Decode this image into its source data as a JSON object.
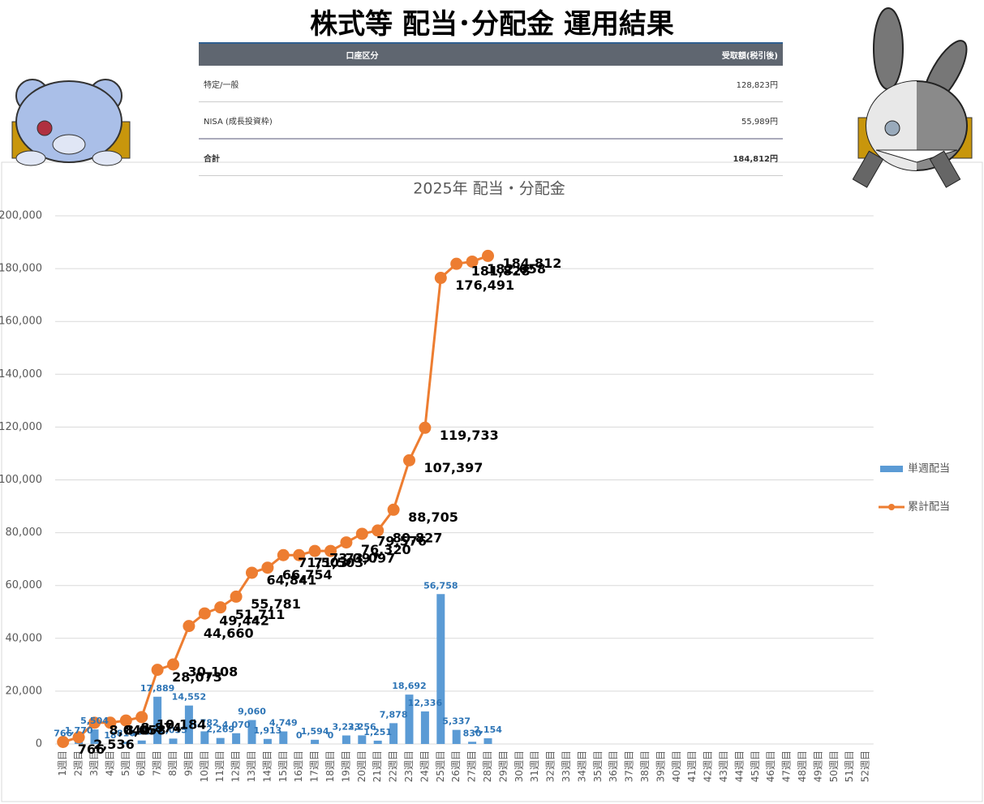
{
  "header": {
    "title": "株式等 配当･分配金 運用結果"
  },
  "table": {
    "columns": [
      "口座区分",
      "受取額(税引後)"
    ],
    "rows": [
      [
        "特定/一般",
        "128,823円"
      ],
      [
        "NISA (成長投資枠)",
        "55,989円"
      ],
      [
        "合計",
        "184,812円"
      ]
    ]
  },
  "chart_data": {
    "type": "bar_line",
    "title": "2025年 配当・分配金",
    "categories": [
      "1週目",
      "2週目",
      "3週目",
      "4週目",
      "5週目",
      "6週目",
      "7週目",
      "8週目",
      "9週目",
      "10週目",
      "11週目",
      "12週目",
      "13週目",
      "14週目",
      "15週目",
      "16週目",
      "17週目",
      "18週目",
      "19週目",
      "20週目",
      "21週目",
      "22週目",
      "23週目",
      "24週目",
      "25週目",
      "26週目",
      "27週目",
      "28週目",
      "29週目",
      "30週目",
      "31週目",
      "32週目",
      "33週目",
      "34週目",
      "35週目",
      "36週目",
      "37週目",
      "38週目",
      "39週目",
      "40週目",
      "41週目",
      "42週目",
      "43週目",
      "44週目",
      "45週目",
      "46週目",
      "47週目",
      "48週目",
      "49週目",
      "50週目",
      "51週目",
      "52週目"
    ],
    "series": [
      {
        "name": "単週配当",
        "type": "bar",
        "color": "#5b9bd5",
        "values": [
          766,
          1770,
          5504,
          18,
          816,
          1310,
          17889,
          2035,
          14552,
          4782,
          2269,
          4070,
          9060,
          1913,
          4749,
          0,
          1594,
          0,
          3223,
          3256,
          1251,
          7878,
          18692,
          12336,
          56758,
          5337,
          830,
          2154,
          null,
          null,
          null,
          null,
          null,
          null,
          null,
          null,
          null,
          null,
          null,
          null,
          null,
          null,
          null,
          null,
          null,
          null,
          null,
          null,
          null,
          null,
          null,
          null
        ],
        "value_labels": [
          "766",
          "1,770",
          "5,504",
          "18",
          "816",
          "1,310",
          "17,889",
          "2,035",
          "14,552",
          "4,782",
          "2,269",
          "4,070",
          "9,060",
          "1,913",
          "4,749",
          "0",
          "1,594",
          "0",
          "3,223",
          "3,256",
          "1,251",
          "7,878",
          "18,692",
          "12,336",
          "56,758",
          "5,337",
          "830",
          "2,154",
          null,
          null,
          null,
          null,
          null,
          null,
          null,
          null,
          null,
          null,
          null,
          null,
          null,
          null,
          null,
          null,
          null,
          null,
          null,
          null,
          null,
          null,
          null,
          null
        ]
      },
      {
        "name": "累計配当",
        "type": "line",
        "color": "#ed7d31",
        "values": [
          766,
          2536,
          8040,
          8058,
          8874,
          10184,
          28073,
          30108,
          44660,
          49442,
          51711,
          55781,
          64841,
          66754,
          71503,
          71503,
          73097,
          73097,
          76320,
          79576,
          80827,
          88705,
          107397,
          119733,
          176491,
          181828,
          182658,
          184812,
          null,
          null,
          null,
          null,
          null,
          null,
          null,
          null,
          null,
          null,
          null,
          null,
          null,
          null,
          null,
          null,
          null,
          null,
          null,
          null,
          null,
          null,
          null,
          null
        ],
        "value_labels": [
          "766",
          "2,536",
          "8,040",
          "8,058",
          "8,874",
          "10,184",
          "28,073",
          "30,108",
          "44,660",
          "49,442",
          "51,711",
          "55,781",
          "64,841",
          "66,754",
          "71,503",
          "71,503",
          "73,097",
          "73,097",
          "76,320",
          "79,576",
          "80,827",
          "88,705",
          "107,397",
          "119,733",
          "176,491",
          "181,828",
          "182,658",
          "184,812",
          null,
          null,
          null,
          null,
          null,
          null,
          null,
          null,
          null,
          null,
          null,
          null,
          null,
          null,
          null,
          null,
          null,
          null,
          null,
          null,
          null,
          null,
          null,
          null
        ]
      }
    ],
    "ylim": [
      0,
      200000
    ],
    "yticks": [
      {
        "value": 0,
        "label": "0"
      },
      {
        "value": 20000,
        "label": "20,000"
      },
      {
        "value": 40000,
        "label": "40,000"
      },
      {
        "value": 60000,
        "label": "60,000"
      },
      {
        "value": 80000,
        "label": "80,000"
      },
      {
        "value": 100000,
        "label": "100,000"
      },
      {
        "value": 120000,
        "label": "120,000"
      },
      {
        "value": 140000,
        "label": "140,000"
      },
      {
        "value": 160000,
        "label": "160,000"
      },
      {
        "value": 180000,
        "label": "180,000"
      },
      {
        "value": 200000,
        "label": "200,000"
      }
    ],
    "grid": true,
    "legend": "right"
  }
}
